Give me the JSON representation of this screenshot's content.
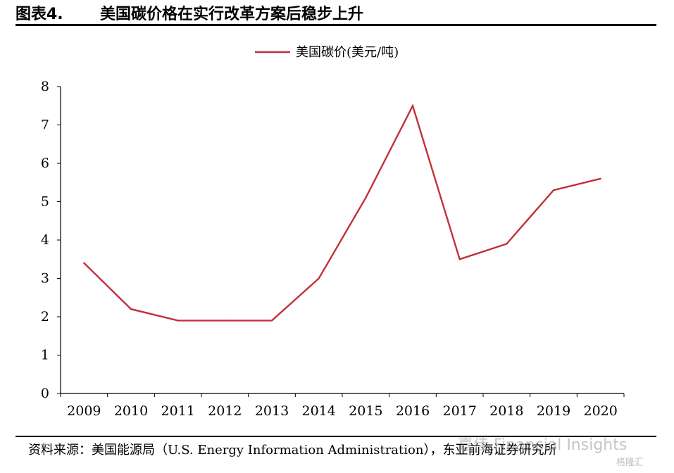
{
  "figure": {
    "number": "图表4.",
    "title": "美国碳价格在实行改革方案后稳步上升"
  },
  "chart_data": {
    "type": "line",
    "title": "",
    "xlabel": "",
    "ylabel": "",
    "x": [
      "2009",
      "2010",
      "2011",
      "2012",
      "2013",
      "2014",
      "2015",
      "2016",
      "2017",
      "2018",
      "2019",
      "2020"
    ],
    "series": [
      {
        "name": "美国碳价(美元/吨)",
        "color": "#c0313a",
        "values": [
          3.4,
          2.2,
          1.9,
          1.9,
          1.9,
          3.0,
          5.1,
          7.5,
          3.5,
          3.9,
          5.3,
          5.6
        ]
      }
    ],
    "ylim": [
      0,
      8
    ],
    "yticks": [
      "0",
      "1",
      "2",
      "3",
      "4",
      "5",
      "6",
      "7",
      "8"
    ],
    "grid": false,
    "legend": "top-center"
  },
  "source": "资料来源：美国能源局（U.S. Energy Information Administration），东亚前海证券研究所",
  "watermark": {
    "text": "嘉佳 Financial Insights",
    "sub": "格隆汇"
  }
}
